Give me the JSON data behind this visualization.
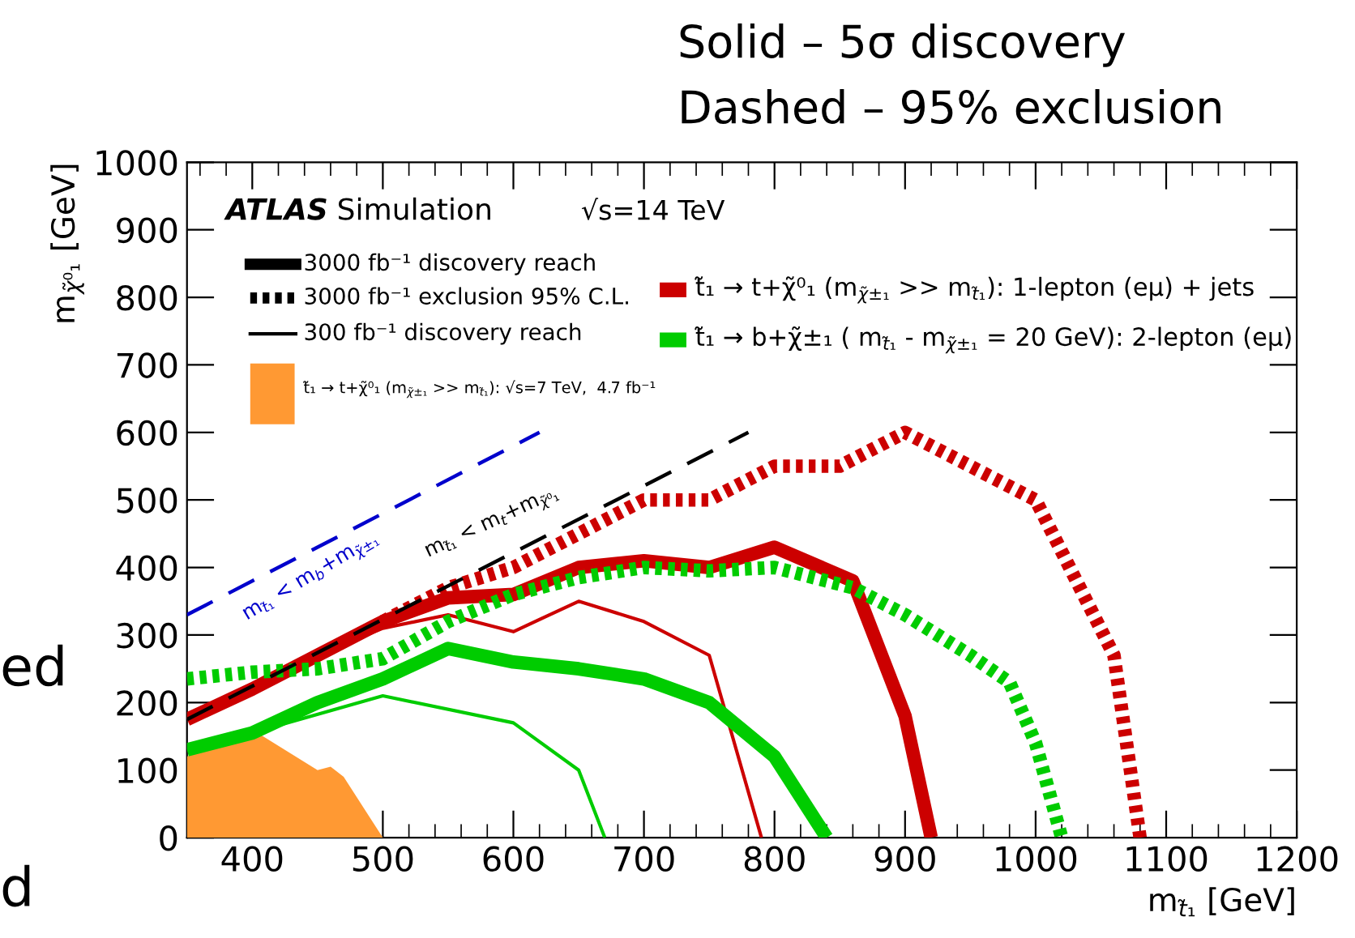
{
  "chart_data": {
    "type": "line",
    "title": "Solid – 5σ discovery",
    "subtitle": "Dashed – 95% exclusion",
    "xlabel": "m$_{t̃₁}$ [GeV]",
    "ylabel": "m$_{χ̃⁰₁}$ [GeV]",
    "xlim": [
      350,
      1200
    ],
    "xticks": [
      400,
      500,
      600,
      700,
      800,
      900,
      1000,
      1100,
      1200
    ],
    "ylim": [
      0,
      1000
    ],
    "yticks": [
      0,
      100,
      200,
      300,
      400,
      500,
      600,
      700,
      800,
      900,
      1000
    ],
    "grid": false,
    "annotations": [
      "ATLAS",
      "Simulation",
      "√s=14 TeV",
      "3000 fb⁻¹ discovery reach",
      "3000 fb⁻¹ exclusion 95% C.L.",
      "300 fb⁻¹ discovery reach",
      "t̃₁ → t+χ̃⁰₁ (m$_{χ̃±₁}$ >> m$_{t̃₁}$): √s=7 TeV,  4.7 fb⁻¹",
      "t̃₁ → t+χ̃⁰₁ (m$_{χ̃±₁}$ >> m$_{t̃₁}$): 1-lepton (eμ) + jets",
      "t̃₁ → b+χ̃±₁ ( m$_{t̃₁}$ - m$_{χ̃±₁}$ = 20 GeV): 2-lepton (eμ)",
      "m$_{t̃₁}$ < m$_{b}$+m$_{χ̃±₁}$",
      "m$_{t̃₁}$ < m$_{t}$+m$_{χ̃⁰₁}$",
      "ed",
      "d"
    ],
    "series": [
      {
        "color": "#cc0000",
        "line_style": "solid",
        "x": [
          350,
          400,
          450,
          500,
          550,
          600,
          650,
          700,
          750,
          800,
          860,
          900,
          920
        ],
        "values": [
          175,
          220,
          270,
          320,
          355,
          360,
          400,
          410,
          400,
          430,
          380,
          180,
          0
        ]
      },
      {
        "color": "#cc0000",
        "line_style": "dotted",
        "x": [
          500,
          550,
          600,
          650,
          700,
          750,
          800,
          850,
          900,
          1000,
          1060,
          1080
        ],
        "values": [
          320,
          370,
          400,
          450,
          500,
          500,
          550,
          550,
          600,
          500,
          270,
          0
        ]
      },
      {
        "color": "#cc0000",
        "line_style": "solid",
        "x": [
          350,
          400,
          450,
          500,
          550,
          600,
          650,
          700,
          750,
          790
        ],
        "values": [
          175,
          220,
          270,
          310,
          330,
          305,
          350,
          320,
          270,
          0
        ]
      },
      {
        "color": "#00cc00",
        "line_style": "solid",
        "x": [
          350,
          400,
          450,
          500,
          550,
          600,
          650,
          700,
          750,
          800,
          840
        ],
        "values": [
          130,
          155,
          200,
          235,
          280,
          260,
          250,
          235,
          200,
          120,
          0
        ]
      },
      {
        "color": "#00cc00",
        "line_style": "dotted",
        "x": [
          350,
          400,
          450,
          500,
          550,
          600,
          650,
          700,
          750,
          800,
          860,
          900,
          950,
          980,
          1000,
          1020
        ],
        "values": [
          235,
          245,
          250,
          265,
          320,
          360,
          385,
          400,
          395,
          400,
          370,
          330,
          270,
          230,
          140,
          0
        ]
      },
      {
        "color": "#00cc00",
        "line_style": "solid",
        "x": [
          350,
          400,
          500,
          600,
          650,
          670
        ],
        "values": [
          130,
          155,
          210,
          170,
          100,
          0
        ]
      },
      {
        "type": "area",
        "color": "#ff9933",
        "x": [
          350,
          400,
          450,
          460,
          470,
          500
        ],
        "values": [
          120,
          160,
          100,
          105,
          90,
          0
        ]
      },
      {
        "color": "#0000cc",
        "line_style": "dashed",
        "x": [
          350,
          620
        ],
        "values": [
          330,
          600
        ]
      },
      {
        "color": "#000000",
        "line_style": "dashed",
        "x": [
          350,
          780
        ],
        "values": [
          175,
          600
        ]
      }
    ]
  }
}
